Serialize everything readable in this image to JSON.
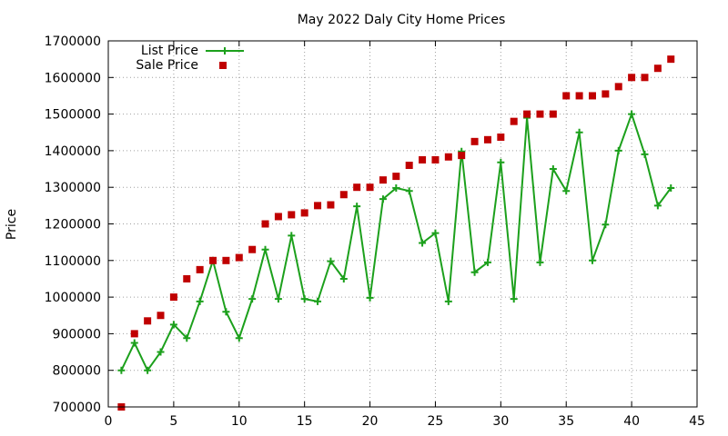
{
  "chart_data": {
    "type": "line",
    "title": "May 2022 Daly City Home Prices",
    "xlabel": "",
    "ylabel": "Price",
    "xlim": [
      0,
      45
    ],
    "ylim": [
      700000,
      1700000
    ],
    "xticks": [
      0,
      5,
      10,
      15,
      20,
      25,
      30,
      35,
      40,
      45
    ],
    "yticks": [
      700000,
      800000,
      900000,
      1000000,
      1100000,
      1200000,
      1300000,
      1400000,
      1500000,
      1600000,
      1700000
    ],
    "grid": true,
    "legend_position": "top-left",
    "x": [
      1,
      2,
      3,
      4,
      5,
      6,
      7,
      8,
      9,
      10,
      11,
      12,
      13,
      14,
      15,
      16,
      17,
      18,
      19,
      20,
      21,
      22,
      23,
      24,
      25,
      26,
      27,
      28,
      29,
      30,
      31,
      32,
      33,
      34,
      35,
      36,
      37,
      38,
      39,
      40,
      41,
      42,
      43
    ],
    "series": [
      {
        "name": "List Price",
        "style": "line-plus",
        "color": "#1ca01c",
        "values": [
          800000,
          875000,
          800000,
          850000,
          925000,
          888000,
          988000,
          1100000,
          960000,
          888000,
          995000,
          1130000,
          995000,
          1168000,
          995000,
          988000,
          1098000,
          1050000,
          1248000,
          998000,
          1268000,
          1298000,
          1290000,
          1148000,
          1175000,
          988000,
          1398000,
          1068000,
          1095000,
          1368000,
          995000,
          1490000,
          1095000,
          1350000,
          1290000,
          1450000,
          1100000,
          1198000,
          1400000,
          1500000,
          1390000,
          1250000,
          1298000
        ]
      },
      {
        "name": "Sale Price",
        "style": "square-marker",
        "color": "#c00000",
        "values": [
          700000,
          900000,
          935000,
          950000,
          1000000,
          1050000,
          1075000,
          1100000,
          1100000,
          1108000,
          1130000,
          1200000,
          1220000,
          1225000,
          1230000,
          1250000,
          1252000,
          1280000,
          1300000,
          1300000,
          1320000,
          1330000,
          1360000,
          1375000,
          1375000,
          1383000,
          1387000,
          1425000,
          1430000,
          1437000,
          1480000,
          1500000,
          1500000,
          1500000,
          1550000,
          1550000,
          1550000,
          1555000,
          1575000,
          1600000,
          1600000,
          1625000,
          1650000
        ]
      }
    ]
  }
}
